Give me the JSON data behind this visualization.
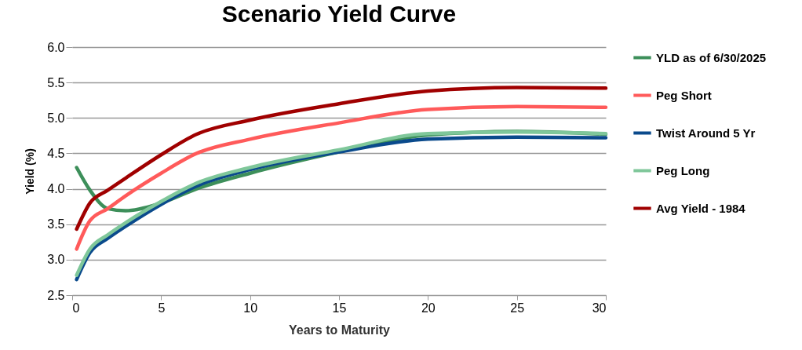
{
  "chart_data": {
    "type": "line",
    "title": "Scenario Yield Curve",
    "xlabel": "Years to Maturity",
    "ylabel": "Yield (%)",
    "x": [
      0.25,
      1,
      2,
      3,
      5,
      7,
      10,
      15,
      20,
      25,
      30
    ],
    "series": [
      {
        "name": "YLD as of 6/30/2025",
        "color": "#3d8f5a",
        "values": [
          4.3,
          3.98,
          3.72,
          3.69,
          3.8,
          4.0,
          4.22,
          4.52,
          4.76,
          4.81,
          4.77
        ]
      },
      {
        "name": "Peg Short",
        "color": "#ff5a5a",
        "values": [
          3.15,
          3.55,
          3.72,
          3.9,
          4.22,
          4.5,
          4.7,
          4.93,
          5.12,
          5.16,
          5.15
        ]
      },
      {
        "name": "Twist Around 5 Yr",
        "color": "#0a4a8c",
        "values": [
          2.72,
          3.1,
          3.3,
          3.47,
          3.78,
          4.04,
          4.27,
          4.52,
          4.7,
          4.73,
          4.72
        ]
      },
      {
        "name": "Peg Long",
        "color": "#7fc79a",
        "values": [
          2.78,
          3.15,
          3.35,
          3.52,
          3.82,
          4.08,
          4.3,
          4.55,
          4.78,
          4.8,
          4.78
        ]
      },
      {
        "name": "Avg Yield - 1984",
        "color": "#a00000",
        "values": [
          3.43,
          3.8,
          3.98,
          4.15,
          4.48,
          4.77,
          4.97,
          5.2,
          5.38,
          5.43,
          5.42
        ]
      }
    ],
    "xlim": [
      0,
      30
    ],
    "xticks": [
      0,
      5,
      10,
      15,
      20,
      25,
      30
    ],
    "ylim": [
      2.5,
      6.0
    ],
    "yticks": [
      {
        "value": 2.5,
        "label": "2.5"
      },
      {
        "value": 3,
        "label": "3.0"
      },
      {
        "value": 3.5,
        "label": "3.5"
      },
      {
        "value": 4,
        "label": "4.0"
      },
      {
        "value": 4.5,
        "label": "4.5"
      },
      {
        "value": 5,
        "label": "5.0"
      },
      {
        "value": 5.5,
        "label": "5.5"
      },
      {
        "value": 6,
        "label": "6.0"
      }
    ],
    "grid": "y",
    "legend": "right",
    "marker": "none",
    "line_style": "solid"
  }
}
